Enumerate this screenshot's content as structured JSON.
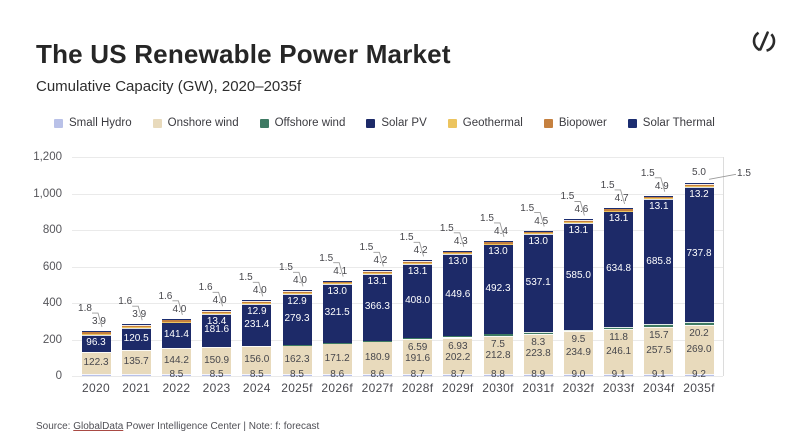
{
  "header": {
    "logo_name": "globaldata-logo"
  },
  "footer": {
    "prefix": "Source: ",
    "link_text": "GlobalData",
    "rest": " Power Intelligence Center | Note: f: forecast"
  },
  "chart_data": {
    "type": "bar",
    "stacked": true,
    "title": "The US Renewable Power Market",
    "subtitle": "Cumulative Capacity (GW), 2020–2035f",
    "unit": "GW",
    "ylim": [
      0,
      1200
    ],
    "ytick_values": [
      0,
      200,
      400,
      600,
      800,
      1000,
      1200
    ],
    "ytick_labels": [
      "0",
      "200",
      "400",
      "600",
      "800",
      "1,000",
      "1,200"
    ],
    "grid": true,
    "legend_position": "top",
    "categories": [
      "2020",
      "2021",
      "2022",
      "2023",
      "2024",
      "2025f",
      "2026f",
      "2027f",
      "2028f",
      "2029f",
      "2030f",
      "2031f",
      "2032f",
      "2033f",
      "2034f",
      "2035f"
    ],
    "series": [
      {
        "id": "small_hydro",
        "name": "Small Hydro",
        "color": "#b9c1e8",
        "values": [
          8.5,
          8.5,
          8.5,
          8.5,
          8.5,
          8.5,
          8.6,
          8.6,
          8.7,
          8.7,
          8.8,
          8.9,
          9.0,
          9.1,
          9.1,
          9.2
        ],
        "labels": [
          null,
          null,
          "8.5",
          "8.5",
          "8.5",
          "8.5",
          "8.6",
          "8.6",
          "8.7",
          "8.7",
          "8.8",
          "8.9",
          "9.0",
          "9.1",
          "9.1",
          "9.2"
        ]
      },
      {
        "id": "onshore_wind",
        "name": "Onshore wind",
        "color": "#e8dabc",
        "values": [
          122.3,
          135.7,
          144.2,
          150.9,
          156.0,
          162.3,
          171.2,
          180.9,
          191.6,
          202.2,
          212.8,
          223.8,
          234.9,
          246.1,
          257.5,
          269.0
        ],
        "labels": [
          "122.3",
          "135.7",
          "144.2",
          "150.9",
          "156.0",
          "162.3",
          "171.2",
          "180.9",
          "191.6",
          "202.2",
          "212.8",
          "223.8",
          "234.9",
          "246.1",
          "257.5",
          "269.0"
        ]
      },
      {
        "id": "offshore_wind",
        "name": "Offshore wind",
        "color": "#3e7a63",
        "values": [
          0,
          0,
          0,
          0.1,
          0.2,
          1.0,
          2.5,
          4.5,
          6.59,
          6.93,
          7.5,
          8.3,
          9.5,
          11.8,
          15.7,
          20.2
        ],
        "labels": [
          null,
          null,
          null,
          null,
          null,
          null,
          null,
          null,
          "6.59",
          "6.93",
          "7.5",
          "8.3",
          "9.5",
          "11.8",
          "15.7",
          "20.2"
        ]
      },
      {
        "id": "solar_pv",
        "name": "Solar PV",
        "color": "#1d2a68",
        "values": [
          96.3,
          120.5,
          141.4,
          181.6,
          231.4,
          279.3,
          321.5,
          366.3,
          408.0,
          449.6,
          492.3,
          537.1,
          585.0,
          634.8,
          685.8,
          737.8
        ],
        "labels": [
          "96.3",
          "120.5",
          "141.4",
          "181.6",
          "231.4",
          "279.3",
          "321.5",
          "366.3",
          "408.0",
          "449.6",
          "492.3",
          "537.1",
          "585.0",
          "634.8",
          "685.8",
          "737.8"
        ]
      },
      {
        "id": "geothermal",
        "name": "Geothermal",
        "color": "#ecc45f",
        "values": [
          3.9,
          3.9,
          4.0,
          4.0,
          4.0,
          4.0,
          4.1,
          4.2,
          4.2,
          4.3,
          4.4,
          4.5,
          4.6,
          4.7,
          4.9,
          5.0
        ],
        "labels": [
          "3.9",
          "3.9",
          "4.0",
          "4.0",
          "4.0",
          "4.0",
          "4.1",
          "4.2",
          "4.2",
          "4.3",
          "4.4",
          "4.5",
          "4.6",
          "4.7",
          "4.9",
          "5.0"
        ]
      },
      {
        "id": "biopower",
        "name": "Biopower",
        "color": "#c5803f",
        "values": [
          13.6,
          13.5,
          13.4,
          13.4,
          12.9,
          12.9,
          13.0,
          13.1,
          13.1,
          13.0,
          13.0,
          13.0,
          13.1,
          13.1,
          13.1,
          13.2
        ],
        "labels": [
          null,
          null,
          null,
          "13.4",
          "12.9",
          "12.9",
          "13.0",
          "13.1",
          "13.1",
          "13.0",
          "13.0",
          "13.0",
          "13.1",
          "13.1",
          "13.1",
          "13.2"
        ]
      },
      {
        "id": "solar_thermal",
        "name": "Solar Thermal",
        "color": "#1b2d70",
        "values": [
          1.8,
          1.6,
          1.6,
          1.6,
          1.5,
          1.5,
          1.5,
          1.5,
          1.5,
          1.5,
          1.5,
          1.5,
          1.5,
          1.5,
          1.5,
          1.5
        ],
        "labels": [
          "1.8",
          "1.6",
          "1.6",
          "1.6",
          "1.5",
          "1.5",
          "1.5",
          "1.5",
          "1.5",
          "1.5",
          "1.5",
          "1.5",
          "1.5",
          "1.5",
          "1.5",
          "1.5"
        ]
      }
    ]
  }
}
